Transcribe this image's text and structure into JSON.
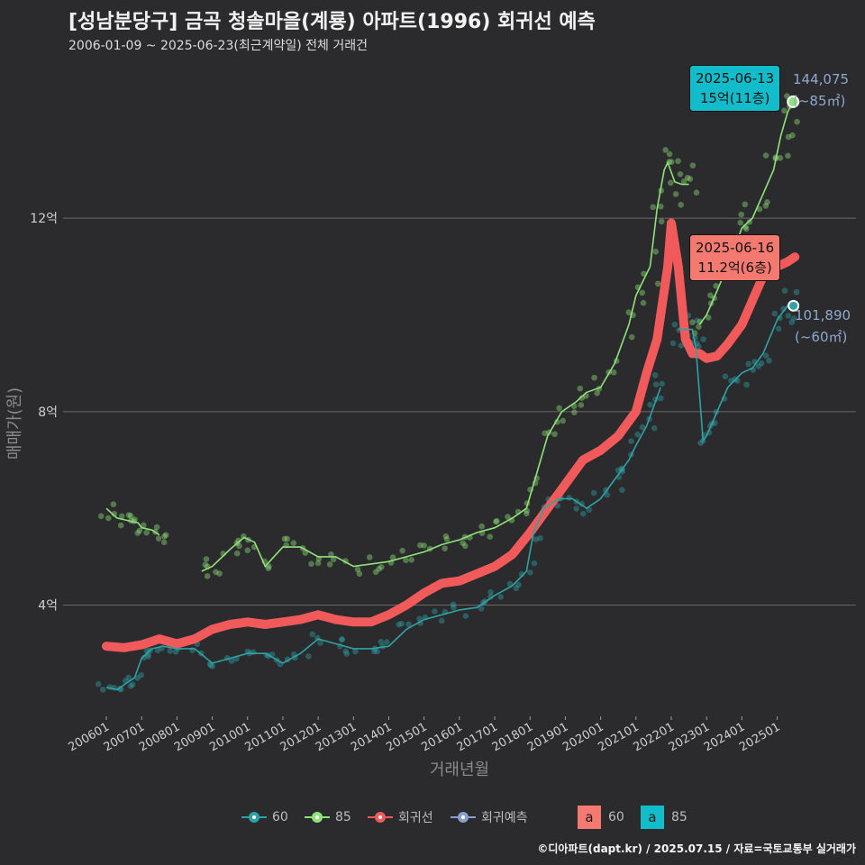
{
  "header": {
    "title": "[성남분당구] 금곡 청솔마을(계룡) 아파트(1996) 회귀선 예측",
    "subtitle": "2006-01-09 ~ 2025-06-23(최근계약일) 전체 거래건"
  },
  "colors": {
    "s60": "#2ea3a6",
    "s85": "#8fe37a",
    "reg": "#f15a5a",
    "pred": "#8aa0cc",
    "grid": "#6a6a6a"
  },
  "annotations": {
    "a85": {
      "date": "2025-06-13",
      "price": "15억(11층)",
      "value": "144,075",
      "area": "(~85㎡)"
    },
    "a60": {
      "date": "2025-06-16",
      "price": "11.2억(6층)",
      "value": "101,890",
      "area": "(~60㎡)"
    }
  },
  "legend": {
    "items": [
      "60",
      "85",
      "회귀선",
      "회귀예측"
    ],
    "box_items": [
      {
        "key": "a",
        "label": "60"
      },
      {
        "key": "a",
        "label": "85"
      }
    ]
  },
  "footer": "©디아파트(dapt.kr) / 2025.07.15 / 자료=국토교통부 실거래가",
  "chart_data": {
    "type": "line",
    "title": "[성남분당구] 금곡 청솔마을(계룡) 아파트(1996) 회귀선 예측",
    "xlabel": "거래년월",
    "ylabel": "매매가(원)",
    "x_ticks": [
      "200601",
      "200701",
      "200801",
      "200901",
      "201001",
      "201101",
      "201201",
      "201301",
      "201401",
      "201501",
      "201601",
      "201701",
      "201801",
      "201901",
      "202001",
      "202101",
      "202201",
      "202301",
      "202401",
      "202501"
    ],
    "y_ticks": [
      {
        "value": 40000,
        "label": "4억"
      },
      {
        "value": 80000,
        "label": "8억"
      },
      {
        "value": 120000,
        "label": "12억"
      }
    ],
    "xlim": [
      2006.0,
      2025.7
    ],
    "ylim": [
      17000,
      153000
    ],
    "series": [
      {
        "name": "60",
        "x": [
          2006.0,
          2006.3,
          2006.6,
          2006.8,
          2007.0,
          2007.3,
          2007.6,
          2008.0,
          2008.5,
          2009.0,
          2009.5,
          2010.0,
          2010.5,
          2011.0,
          2011.5,
          2012.0,
          2012.5,
          2013.0,
          2013.5,
          2014.0,
          2014.5,
          2015.0,
          2015.5,
          2016.0,
          2016.5,
          2017.0,
          2017.5,
          2017.9,
          2018.1,
          2018.4,
          2018.8,
          2019.2,
          2019.6,
          2020.0,
          2020.4,
          2020.8,
          2021.0,
          2021.3,
          2021.6,
          2021.7,
          2021.9,
          2022.2,
          2022.5,
          2022.6,
          2022.7,
          2022.9,
          2023.0,
          2023.3,
          2023.6,
          2024.0,
          2024.3,
          2024.6,
          2025.0,
          2025.3,
          2025.46
        ],
        "y": [
          23000,
          22500,
          24000,
          25000,
          29000,
          31000,
          31500,
          31000,
          31000,
          28000,
          29000,
          30000,
          30000,
          28000,
          30000,
          33000,
          32000,
          31000,
          31000,
          31500,
          35000,
          37000,
          38000,
          39000,
          39500,
          42000,
          44000,
          47000,
          55000,
          60000,
          62000,
          62000,
          60000,
          62000,
          66000,
          70000,
          73000,
          77000,
          83000,
          85000,
          null,
          97000,
          97000,
          97000,
          93000,
          74000,
          75000,
          80000,
          85000,
          88000,
          89000,
          92000,
          99000,
          102000,
          101890
        ]
      },
      {
        "name": "85",
        "x": [
          2006.0,
          2006.3,
          2006.6,
          2006.9,
          2007.0,
          2007.3,
          2007.5,
          null,
          2008.7,
          2009.0,
          2009.5,
          2009.9,
          2010.2,
          2010.5,
          2011.0,
          2011.5,
          2012.0,
          2012.5,
          2013.0,
          2013.5,
          2014.0,
          2014.5,
          2015.0,
          2015.5,
          2016.0,
          2016.5,
          2017.0,
          2017.5,
          2017.9,
          2018.1,
          2018.5,
          2018.9,
          2019.3,
          2019.6,
          2020.0,
          2020.4,
          2020.8,
          2021.0,
          2021.4,
          2021.6,
          2021.8,
          2021.9,
          2022.1,
          2022.3,
          2022.5,
          null,
          2022.8,
          2023.0,
          2023.3,
          2023.7,
          2024.0,
          2024.3,
          2024.6,
          2024.9,
          2025.1,
          2025.3,
          2025.45
        ],
        "y": [
          60000,
          58000,
          57500,
          57000,
          56000,
          55500,
          54500,
          null,
          47000,
          48000,
          51500,
          54000,
          53000,
          48000,
          52000,
          52000,
          50000,
          50000,
          48000,
          48500,
          49000,
          50000,
          51000,
          52500,
          53500,
          55000,
          56000,
          58000,
          60000,
          65000,
          75000,
          80000,
          82000,
          84000,
          85000,
          90000,
          98000,
          104000,
          110000,
          122000,
          130000,
          131500,
          127500,
          127000,
          127000,
          null,
          98000,
          100000,
          105000,
          112000,
          118000,
          120000,
          125000,
          130000,
          137000,
          142000,
          144075
        ]
      },
      {
        "name": "회귀선",
        "x": [
          2006.0,
          2006.5,
          2007.0,
          2007.5,
          2008.0,
          2008.5,
          2009.0,
          2009.5,
          2010.0,
          2010.5,
          2011.0,
          2011.5,
          2012.0,
          2012.5,
          2013.0,
          2013.5,
          2014.0,
          2014.5,
          2015.0,
          2015.5,
          2016.0,
          2016.5,
          2017.0,
          2017.5,
          2018.0,
          2018.5,
          2019.0,
          2019.5,
          2020.0,
          2020.5,
          2021.0,
          2021.3,
          2021.6,
          2021.9,
          2022.0,
          2022.2,
          2022.4,
          2022.6,
          2022.8,
          2023.0,
          2023.3,
          2023.6,
          2024.0,
          2024.3,
          2024.6,
          2025.0,
          2025.3,
          2025.5
        ],
        "y": [
          31500,
          31200,
          31800,
          33000,
          32000,
          33000,
          35000,
          36000,
          36500,
          36000,
          36500,
          37000,
          38000,
          37000,
          36500,
          36500,
          38000,
          40000,
          42500,
          44500,
          45000,
          46500,
          48000,
          50500,
          55000,
          60000,
          65000,
          70000,
          72000,
          75000,
          80000,
          88000,
          95000,
          110000,
          119000,
          110000,
          95000,
          92000,
          92000,
          91000,
          91500,
          94000,
          98000,
          103000,
          108000,
          110000,
          111000,
          112000
        ]
      },
      {
        "name": "회귀예측",
        "x": [],
        "y": []
      }
    ]
  }
}
